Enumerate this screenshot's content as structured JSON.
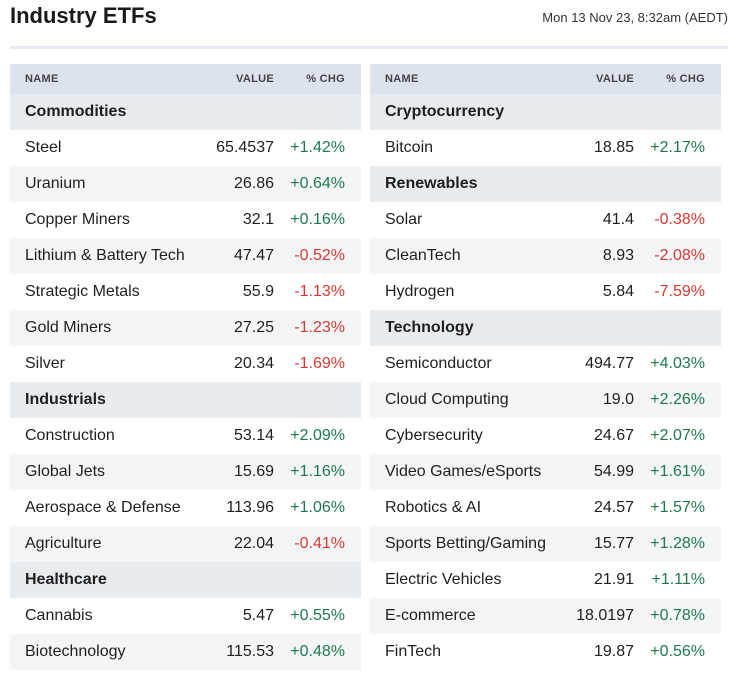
{
  "header": {
    "title": "Industry ETFs",
    "timestamp": "Mon 13 Nov 23, 8:32am (AEDT)"
  },
  "columns": {
    "name": "NAME",
    "value": "VALUE",
    "chg": "% CHG"
  },
  "colors": {
    "up": "#1e7a4e",
    "down": "#d63a32",
    "header_bg": "#dde3ea",
    "category_bg": "#e8ecf0"
  },
  "left_table": [
    {
      "type": "category",
      "name": "Commodities"
    },
    {
      "type": "item",
      "name": "Steel",
      "value": "65.4537",
      "chg": "+1.42%",
      "dir": "up"
    },
    {
      "type": "item",
      "name": "Uranium",
      "value": "26.86",
      "chg": "+0.64%",
      "dir": "up"
    },
    {
      "type": "item",
      "name": "Copper Miners",
      "value": "32.1",
      "chg": "+0.16%",
      "dir": "up"
    },
    {
      "type": "item",
      "name": "Lithium & Battery Tech",
      "value": "47.47",
      "chg": "-0.52%",
      "dir": "down"
    },
    {
      "type": "item",
      "name": "Strategic Metals",
      "value": "55.9",
      "chg": "-1.13%",
      "dir": "down"
    },
    {
      "type": "item",
      "name": "Gold Miners",
      "value": "27.25",
      "chg": "-1.23%",
      "dir": "down"
    },
    {
      "type": "item",
      "name": "Silver",
      "value": "20.34",
      "chg": "-1.69%",
      "dir": "down"
    },
    {
      "type": "category",
      "name": "Industrials"
    },
    {
      "type": "item",
      "name": "Construction",
      "value": "53.14",
      "chg": "+2.09%",
      "dir": "up"
    },
    {
      "type": "item",
      "name": "Global Jets",
      "value": "15.69",
      "chg": "+1.16%",
      "dir": "up"
    },
    {
      "type": "item",
      "name": "Aerospace & Defense",
      "value": "113.96",
      "chg": "+1.06%",
      "dir": "up"
    },
    {
      "type": "item",
      "name": "Agriculture",
      "value": "22.04",
      "chg": "-0.41%",
      "dir": "down"
    },
    {
      "type": "category",
      "name": "Healthcare"
    },
    {
      "type": "item",
      "name": "Cannabis",
      "value": "5.47",
      "chg": "+0.55%",
      "dir": "up"
    },
    {
      "type": "item",
      "name": "Biotechnology",
      "value": "115.53",
      "chg": "+0.48%",
      "dir": "up"
    }
  ],
  "right_table": [
    {
      "type": "category",
      "name": "Cryptocurrency"
    },
    {
      "type": "item",
      "name": "Bitcoin",
      "value": "18.85",
      "chg": "+2.17%",
      "dir": "up"
    },
    {
      "type": "category",
      "name": "Renewables"
    },
    {
      "type": "item",
      "name": "Solar",
      "value": "41.4",
      "chg": "-0.38%",
      "dir": "down"
    },
    {
      "type": "item",
      "name": "CleanTech",
      "value": "8.93",
      "chg": "-2.08%",
      "dir": "down"
    },
    {
      "type": "item",
      "name": "Hydrogen",
      "value": "5.84",
      "chg": "-7.59%",
      "dir": "down"
    },
    {
      "type": "category",
      "name": "Technology"
    },
    {
      "type": "item",
      "name": "Semiconductor",
      "value": "494.77",
      "chg": "+4.03%",
      "dir": "up"
    },
    {
      "type": "item",
      "name": "Cloud Computing",
      "value": "19.0",
      "chg": "+2.26%",
      "dir": "up"
    },
    {
      "type": "item",
      "name": "Cybersecurity",
      "value": "24.67",
      "chg": "+2.07%",
      "dir": "up"
    },
    {
      "type": "item",
      "name": "Video Games/eSports",
      "value": "54.99",
      "chg": "+1.61%",
      "dir": "up"
    },
    {
      "type": "item",
      "name": "Robotics & AI",
      "value": "24.57",
      "chg": "+1.57%",
      "dir": "up"
    },
    {
      "type": "item",
      "name": "Sports Betting/Gaming",
      "value": "15.77",
      "chg": "+1.28%",
      "dir": "up"
    },
    {
      "type": "item",
      "name": "Electric Vehicles",
      "value": "21.91",
      "chg": "+1.11%",
      "dir": "up"
    },
    {
      "type": "item",
      "name": "E-commerce",
      "value": "18.0197",
      "chg": "+0.78%",
      "dir": "up"
    },
    {
      "type": "item",
      "name": "FinTech",
      "value": "19.87",
      "chg": "+0.56%",
      "dir": "up"
    }
  ]
}
